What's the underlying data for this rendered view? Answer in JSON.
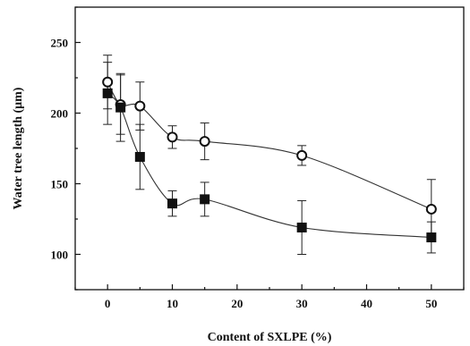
{
  "chart_data": {
    "type": "scatter",
    "title": "",
    "xlabel": "Content of SXLPE (%)",
    "ylabel": "Water tree length (μm)",
    "xlim": [
      -5,
      55
    ],
    "ylim": [
      75,
      275
    ],
    "xticks": [
      0,
      10,
      20,
      30,
      40,
      50
    ],
    "yticks": [
      100,
      150,
      200,
      250
    ],
    "grid": false,
    "series": [
      {
        "marker": "open-circle",
        "x": [
          0,
          2,
          5,
          10,
          15,
          30,
          50
        ],
        "y": [
          222,
          206,
          205,
          183,
          180,
          170,
          132
        ],
        "err": [
          19,
          21,
          17,
          8,
          13,
          7,
          21
        ]
      },
      {
        "marker": "filled-square",
        "x": [
          0,
          2,
          5,
          10,
          15,
          30,
          50
        ],
        "y": [
          214,
          204,
          169,
          136,
          139,
          119,
          112
        ],
        "err": [
          22,
          24,
          23,
          9,
          12,
          19,
          11
        ]
      }
    ]
  }
}
